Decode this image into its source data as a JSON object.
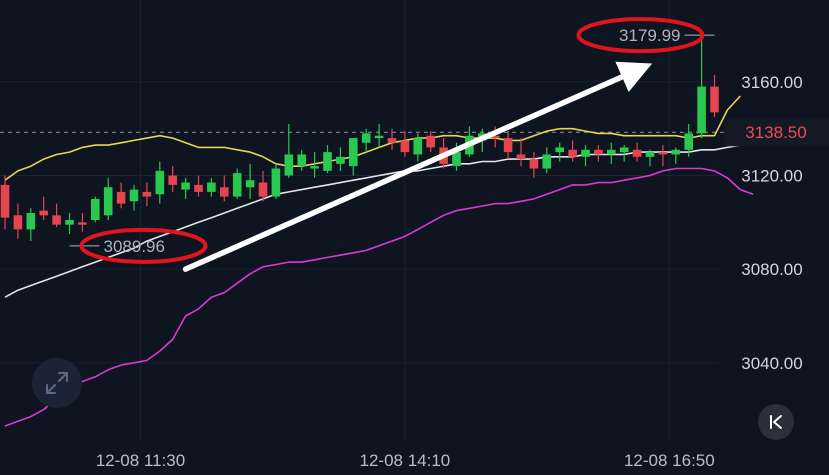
{
  "chart_data": {
    "type": "candlestick",
    "ylim": [
      3007,
      3195
    ],
    "y_ticks": [
      {
        "value": 3160,
        "label": "3160.00"
      },
      {
        "value": 3120,
        "label": "3120.00"
      },
      {
        "value": 3080,
        "label": "3080.00"
      },
      {
        "value": 3040,
        "label": "3040.00"
      }
    ],
    "x_ticks": [
      {
        "index": 10.5,
        "label": "12-08 11:30"
      },
      {
        "index": 31,
        "label": "12-08 14:10"
      },
      {
        "index": 51.5,
        "label": "12-08 16:50"
      }
    ],
    "current_price": {
      "value": 3138.5,
      "label": "3138.50"
    },
    "annotations": [
      {
        "index": 5,
        "value": 3089.96,
        "label": "3089.96",
        "side": "right"
      },
      {
        "index": 55,
        "value": 3179.99,
        "label": "3179.99",
        "side": "left"
      }
    ],
    "arrow": {
      "from": [
        14,
        3080
      ],
      "to": [
        49,
        3165
      ]
    },
    "candles": [
      [
        3116,
        3120,
        3097,
        3102
      ],
      [
        3103,
        3108,
        3093,
        3097
      ],
      [
        3097,
        3106,
        3092,
        3104
      ],
      [
        3105,
        3111,
        3101,
        3103
      ],
      [
        3103,
        3108,
        3098,
        3099
      ],
      [
        3099,
        3104,
        3095,
        3101
      ],
      [
        3100,
        3104,
        3096,
        3099
      ],
      [
        3101,
        3111,
        3100,
        3110
      ],
      [
        3103,
        3119,
        3101,
        3115
      ],
      [
        3113,
        3117,
        3106,
        3108
      ],
      [
        3109,
        3116,
        3105,
        3114
      ],
      [
        3113,
        3117,
        3107,
        3111
      ],
      [
        3112,
        3126,
        3108,
        3122
      ],
      [
        3120,
        3124,
        3113,
        3116
      ],
      [
        3114,
        3119,
        3110,
        3117
      ],
      [
        3116,
        3120,
        3111,
        3113
      ],
      [
        3113,
        3119,
        3111,
        3117
      ],
      [
        3115,
        3120,
        3109,
        3111
      ],
      [
        3111,
        3123,
        3110,
        3121
      ],
      [
        3115,
        3125,
        3110,
        3118
      ],
      [
        3117,
        3122,
        3109,
        3111
      ],
      [
        3111,
        3125,
        3110,
        3123
      ],
      [
        3120,
        3142,
        3119,
        3129
      ],
      [
        3124,
        3131,
        3122,
        3129
      ],
      [
        3123,
        3130,
        3119,
        3124
      ],
      [
        3122,
        3133,
        3121,
        3130
      ],
      [
        3125,
        3132,
        3122,
        3128
      ],
      [
        3124,
        3136,
        3120,
        3136
      ],
      [
        3134,
        3140,
        3130,
        3138
      ],
      [
        3136,
        3142,
        3132,
        3137
      ],
      [
        3136,
        3140,
        3131,
        3134
      ],
      [
        3135,
        3139,
        3128,
        3130
      ],
      [
        3129,
        3138,
        3126,
        3136
      ],
      [
        3137,
        3139,
        3130,
        3132
      ],
      [
        3132,
        3136,
        3123,
        3125
      ],
      [
        3124,
        3134,
        3122,
        3130
      ],
      [
        3129,
        3141,
        3128,
        3137
      ],
      [
        3135,
        3140,
        3130,
        3138
      ],
      [
        3137,
        3141,
        3132,
        3136
      ],
      [
        3136,
        3139,
        3127,
        3130
      ],
      [
        3129,
        3136,
        3124,
        3127
      ],
      [
        3127,
        3130,
        3119,
        3123
      ],
      [
        3123,
        3132,
        3121,
        3129
      ],
      [
        3130,
        3134,
        3126,
        3132
      ],
      [
        3131,
        3135,
        3126,
        3128
      ],
      [
        3128,
        3133,
        3124,
        3131
      ],
      [
        3131,
        3133,
        3126,
        3129
      ],
      [
        3129,
        3134,
        3125,
        3131
      ],
      [
        3130,
        3133,
        3126,
        3132
      ],
      [
        3131,
        3134,
        3126,
        3128
      ],
      [
        3128,
        3131,
        3124,
        3130
      ],
      [
        3130,
        3133,
        3124,
        3129
      ],
      [
        3129,
        3132,
        3125,
        3131
      ],
      [
        3131,
        3142,
        3128,
        3138
      ],
      [
        3138,
        3180,
        3136,
        3158
      ],
      [
        3158,
        3163,
        3145,
        3147
      ]
    ],
    "series": [
      {
        "color": "#e7d55a",
        "values": [
          3118,
          3122,
          3124,
          3127,
          3129,
          3130,
          3132,
          3133,
          3133,
          3134,
          3135,
          3136,
          3137,
          3136,
          3134,
          3132,
          3132,
          3132,
          3131,
          3130,
          3128,
          3125,
          3124,
          3124,
          3125,
          3126,
          3127,
          3128,
          3130,
          3132,
          3134,
          3135,
          3136,
          3136,
          3137,
          3137,
          3136,
          3136,
          3136,
          3135,
          3135,
          3137,
          3139,
          3140,
          3140,
          3139,
          3138,
          3138,
          3137,
          3137,
          3137,
          3137,
          3137,
          3136,
          3137,
          3137,
          3148,
          3154
        ]
      },
      {
        "color": "#e3e5ea",
        "values": [
          3068,
          3071,
          3073,
          3075,
          3077,
          3079,
          3081,
          3083,
          3085,
          3087,
          3089,
          3092,
          3094,
          3096,
          3098,
          3100,
          3102,
          3104,
          3106,
          3108,
          3110,
          3112,
          3113,
          3114,
          3115,
          3116,
          3117,
          3118,
          3119,
          3120,
          3121,
          3122,
          3122,
          3123,
          3124,
          3125,
          3125,
          3126,
          3126,
          3127,
          3127,
          3127,
          3128,
          3128,
          3128,
          3129,
          3129,
          3129,
          3129,
          3130,
          3130,
          3130,
          3130,
          3130,
          3131,
          3131,
          3132,
          3133
        ]
      },
      {
        "color": "#d83bd2",
        "values": [
          3013,
          3015,
          3017,
          3020,
          3025,
          3028,
          3032,
          3034,
          3037,
          3039,
          3040,
          3041,
          3045,
          3050,
          3060,
          3063,
          3068,
          3070,
          3074,
          3078,
          3081,
          3082,
          3083,
          3083,
          3084,
          3085,
          3086,
          3087,
          3088,
          3090,
          3092,
          3094,
          3097,
          3100,
          3103,
          3105,
          3106,
          3107,
          3108,
          3108,
          3109,
          3110,
          3112,
          3114,
          3116,
          3116,
          3117,
          3117,
          3118,
          3119,
          3120,
          3122,
          3123,
          3123,
          3123,
          3122,
          3119,
          3114,
          3112
        ]
      }
    ]
  },
  "controls": {
    "expand_icon": "expand-icon",
    "back_icon": "collapse-left-icon"
  },
  "colors": {
    "up": "#29c84f",
    "down": "#e5454f",
    "background": "#0e1420"
  }
}
